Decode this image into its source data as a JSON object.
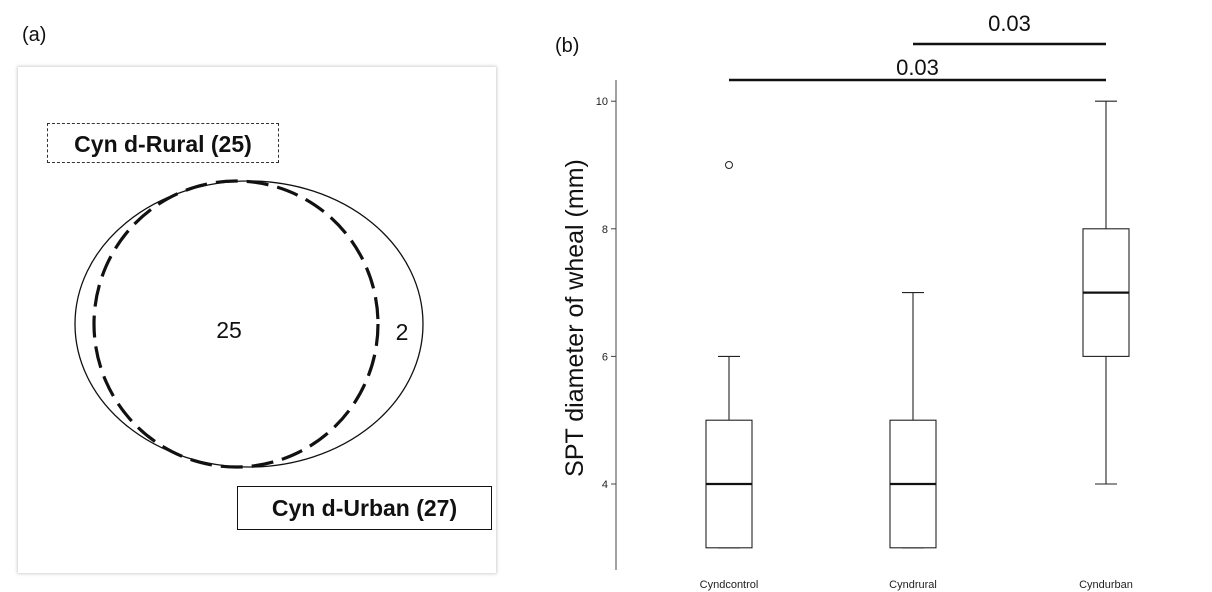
{
  "panels": {
    "a_label": "(a)",
    "b_label": "(b)"
  },
  "venn": {
    "rural_label": "Cyn d-Rural (25)",
    "urban_label": "Cyn d-Urban (27)",
    "overlap_count": "25",
    "urban_only_count": "2"
  },
  "chart_data": {
    "type": "box",
    "ylabel": "SPT diameter of wheal (mm)",
    "categories": [
      "Cyndcontrol",
      "Cyndrural",
      "Cyndurban"
    ],
    "ylim": [
      3,
      10
    ],
    "yticks": [
      4,
      6,
      8,
      10
    ],
    "boxes": [
      {
        "category": "Cyndcontrol",
        "min": 3,
        "q1": 3,
        "median": 4,
        "q3": 5,
        "max": 6,
        "outliers": [
          9
        ]
      },
      {
        "category": "Cyndrural",
        "min": 3,
        "q1": 3,
        "median": 4,
        "q3": 5,
        "max": 7,
        "outliers": []
      },
      {
        "category": "Cyndurban",
        "min": 4,
        "q1": 6,
        "median": 7,
        "q3": 8,
        "max": 10,
        "outliers": []
      }
    ],
    "significance": [
      {
        "from": "Cyndcontrol",
        "to": "Cyndurban",
        "label": "0.03"
      },
      {
        "from": "Cyndrural",
        "to": "Cyndurban",
        "label": "0.03"
      }
    ]
  }
}
